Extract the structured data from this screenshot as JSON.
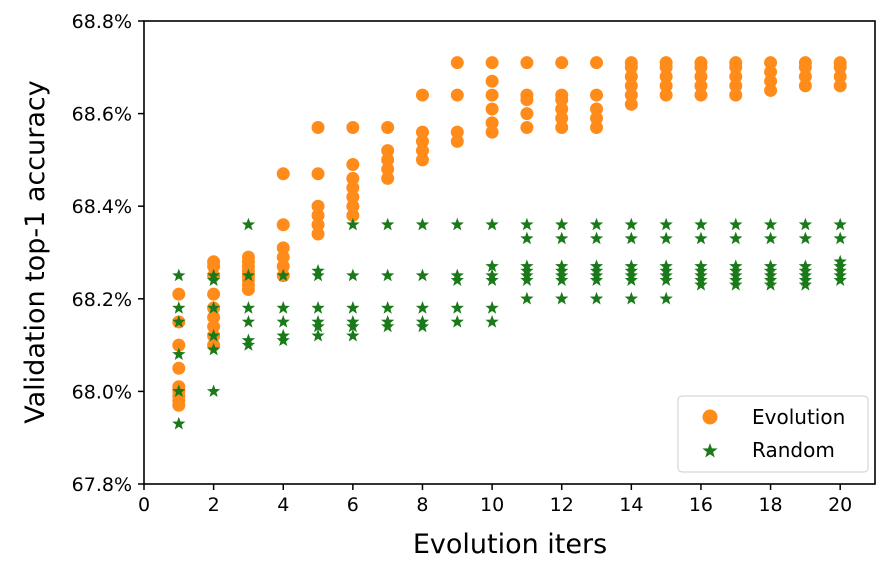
{
  "chart_data": {
    "type": "scatter",
    "xlabel": "Evolution iters",
    "ylabel": "Validation top-1 accuracy",
    "xlim": [
      0,
      21
    ],
    "ylim": [
      67.8,
      68.8
    ],
    "xticks": [
      0,
      2,
      4,
      6,
      8,
      10,
      12,
      14,
      16,
      18,
      20
    ],
    "yticks": [
      67.8,
      68.0,
      68.2,
      68.4,
      68.6,
      68.8
    ],
    "ytick_format": "percent_1dp",
    "legend_position": "lower-right",
    "series": [
      {
        "name": "Evolution",
        "marker": "circle",
        "color": "#ff8c1a",
        "points": [
          [
            1,
            67.97
          ],
          [
            1,
            67.98
          ],
          [
            1,
            67.99
          ],
          [
            1,
            68.0
          ],
          [
            1,
            68.01
          ],
          [
            1,
            68.05
          ],
          [
            1,
            68.1
          ],
          [
            1,
            68.15
          ],
          [
            1,
            68.21
          ],
          [
            2,
            68.1
          ],
          [
            2,
            68.12
          ],
          [
            2,
            68.14
          ],
          [
            2,
            68.16
          ],
          [
            2,
            68.18
          ],
          [
            2,
            68.21
          ],
          [
            2,
            68.25
          ],
          [
            2,
            68.27
          ],
          [
            2,
            68.28
          ],
          [
            3,
            68.22
          ],
          [
            3,
            68.23
          ],
          [
            3,
            68.24
          ],
          [
            3,
            68.25
          ],
          [
            3,
            68.26
          ],
          [
            3,
            68.27
          ],
          [
            3,
            68.28
          ],
          [
            3,
            68.29
          ],
          [
            4,
            68.25
          ],
          [
            4,
            68.27
          ],
          [
            4,
            68.29
          ],
          [
            4,
            68.31
          ],
          [
            4,
            68.36
          ],
          [
            4,
            68.47
          ],
          [
            5,
            68.34
          ],
          [
            5,
            68.36
          ],
          [
            5,
            68.38
          ],
          [
            5,
            68.4
          ],
          [
            5,
            68.47
          ],
          [
            5,
            68.57
          ],
          [
            6,
            68.38
          ],
          [
            6,
            68.4
          ],
          [
            6,
            68.42
          ],
          [
            6,
            68.44
          ],
          [
            6,
            68.46
          ],
          [
            6,
            68.49
          ],
          [
            6,
            68.57
          ],
          [
            7,
            68.46
          ],
          [
            7,
            68.48
          ],
          [
            7,
            68.5
          ],
          [
            7,
            68.52
          ],
          [
            7,
            68.57
          ],
          [
            8,
            68.5
          ],
          [
            8,
            68.52
          ],
          [
            8,
            68.54
          ],
          [
            8,
            68.56
          ],
          [
            8,
            68.64
          ],
          [
            9,
            68.54
          ],
          [
            9,
            68.56
          ],
          [
            9,
            68.64
          ],
          [
            9,
            68.71
          ],
          [
            10,
            68.56
          ],
          [
            10,
            68.58
          ],
          [
            10,
            68.61
          ],
          [
            10,
            68.64
          ],
          [
            10,
            68.67
          ],
          [
            10,
            68.71
          ],
          [
            11,
            68.57
          ],
          [
            11,
            68.6
          ],
          [
            11,
            68.63
          ],
          [
            11,
            68.64
          ],
          [
            11,
            68.71
          ],
          [
            12,
            68.57
          ],
          [
            12,
            68.59
          ],
          [
            12,
            68.61
          ],
          [
            12,
            68.63
          ],
          [
            12,
            68.64
          ],
          [
            12,
            68.71
          ],
          [
            13,
            68.57
          ],
          [
            13,
            68.59
          ],
          [
            13,
            68.61
          ],
          [
            13,
            68.64
          ],
          [
            13,
            68.71
          ],
          [
            14,
            68.62
          ],
          [
            14,
            68.64
          ],
          [
            14,
            68.66
          ],
          [
            14,
            68.68
          ],
          [
            14,
            68.7
          ],
          [
            14,
            68.71
          ],
          [
            15,
            68.64
          ],
          [
            15,
            68.66
          ],
          [
            15,
            68.68
          ],
          [
            15,
            68.7
          ],
          [
            15,
            68.71
          ],
          [
            16,
            68.64
          ],
          [
            16,
            68.66
          ],
          [
            16,
            68.68
          ],
          [
            16,
            68.7
          ],
          [
            16,
            68.71
          ],
          [
            17,
            68.64
          ],
          [
            17,
            68.66
          ],
          [
            17,
            68.68
          ],
          [
            17,
            68.7
          ],
          [
            17,
            68.71
          ],
          [
            18,
            68.65
          ],
          [
            18,
            68.67
          ],
          [
            18,
            68.69
          ],
          [
            18,
            68.71
          ],
          [
            19,
            68.66
          ],
          [
            19,
            68.68
          ],
          [
            19,
            68.7
          ],
          [
            19,
            68.71
          ],
          [
            20,
            68.66
          ],
          [
            20,
            68.68
          ],
          [
            20,
            68.7
          ],
          [
            20,
            68.71
          ]
        ]
      },
      {
        "name": "Random",
        "marker": "star",
        "color": "#1a7a1a",
        "points": [
          [
            1,
            67.93
          ],
          [
            1,
            68.0
          ],
          [
            1,
            68.08
          ],
          [
            1,
            68.15
          ],
          [
            1,
            68.18
          ],
          [
            1,
            68.25
          ],
          [
            2,
            68.0
          ],
          [
            2,
            68.09
          ],
          [
            2,
            68.12
          ],
          [
            2,
            68.18
          ],
          [
            2,
            68.24
          ],
          [
            2,
            68.25
          ],
          [
            3,
            68.1
          ],
          [
            3,
            68.11
          ],
          [
            3,
            68.15
          ],
          [
            3,
            68.18
          ],
          [
            3,
            68.25
          ],
          [
            3,
            68.36
          ],
          [
            4,
            68.11
          ],
          [
            4,
            68.12
          ],
          [
            4,
            68.15
          ],
          [
            4,
            68.18
          ],
          [
            4,
            68.25
          ],
          [
            5,
            68.12
          ],
          [
            5,
            68.14
          ],
          [
            5,
            68.15
          ],
          [
            5,
            68.18
          ],
          [
            5,
            68.25
          ],
          [
            5,
            68.26
          ],
          [
            6,
            68.12
          ],
          [
            6,
            68.14
          ],
          [
            6,
            68.15
          ],
          [
            6,
            68.18
          ],
          [
            6,
            68.25
          ],
          [
            6,
            68.36
          ],
          [
            7,
            68.14
          ],
          [
            7,
            68.15
          ],
          [
            7,
            68.18
          ],
          [
            7,
            68.25
          ],
          [
            7,
            68.36
          ],
          [
            8,
            68.14
          ],
          [
            8,
            68.15
          ],
          [
            8,
            68.18
          ],
          [
            8,
            68.25
          ],
          [
            8,
            68.36
          ],
          [
            9,
            68.15
          ],
          [
            9,
            68.18
          ],
          [
            9,
            68.24
          ],
          [
            9,
            68.25
          ],
          [
            9,
            68.36
          ],
          [
            10,
            68.15
          ],
          [
            10,
            68.18
          ],
          [
            10,
            68.24
          ],
          [
            10,
            68.25
          ],
          [
            10,
            68.27
          ],
          [
            10,
            68.36
          ],
          [
            11,
            68.2
          ],
          [
            11,
            68.24
          ],
          [
            11,
            68.25
          ],
          [
            11,
            68.26
          ],
          [
            11,
            68.27
          ],
          [
            11,
            68.33
          ],
          [
            11,
            68.36
          ],
          [
            12,
            68.2
          ],
          [
            12,
            68.24
          ],
          [
            12,
            68.25
          ],
          [
            12,
            68.26
          ],
          [
            12,
            68.27
          ],
          [
            12,
            68.33
          ],
          [
            12,
            68.36
          ],
          [
            13,
            68.2
          ],
          [
            13,
            68.24
          ],
          [
            13,
            68.25
          ],
          [
            13,
            68.26
          ],
          [
            13,
            68.27
          ],
          [
            13,
            68.33
          ],
          [
            13,
            68.36
          ],
          [
            14,
            68.2
          ],
          [
            14,
            68.24
          ],
          [
            14,
            68.25
          ],
          [
            14,
            68.26
          ],
          [
            14,
            68.27
          ],
          [
            14,
            68.33
          ],
          [
            14,
            68.36
          ],
          [
            15,
            68.2
          ],
          [
            15,
            68.24
          ],
          [
            15,
            68.25
          ],
          [
            15,
            68.26
          ],
          [
            15,
            68.27
          ],
          [
            15,
            68.33
          ],
          [
            15,
            68.36
          ],
          [
            16,
            68.23
          ],
          [
            16,
            68.24
          ],
          [
            16,
            68.25
          ],
          [
            16,
            68.26
          ],
          [
            16,
            68.27
          ],
          [
            16,
            68.33
          ],
          [
            16,
            68.36
          ],
          [
            17,
            68.23
          ],
          [
            17,
            68.24
          ],
          [
            17,
            68.25
          ],
          [
            17,
            68.26
          ],
          [
            17,
            68.27
          ],
          [
            17,
            68.33
          ],
          [
            17,
            68.36
          ],
          [
            18,
            68.23
          ],
          [
            18,
            68.24
          ],
          [
            18,
            68.25
          ],
          [
            18,
            68.26
          ],
          [
            18,
            68.27
          ],
          [
            18,
            68.33
          ],
          [
            18,
            68.36
          ],
          [
            19,
            68.23
          ],
          [
            19,
            68.24
          ],
          [
            19,
            68.25
          ],
          [
            19,
            68.26
          ],
          [
            19,
            68.27
          ],
          [
            19,
            68.33
          ],
          [
            19,
            68.36
          ],
          [
            20,
            68.24
          ],
          [
            20,
            68.25
          ],
          [
            20,
            68.26
          ],
          [
            20,
            68.27
          ],
          [
            20,
            68.28
          ],
          [
            20,
            68.33
          ],
          [
            20,
            68.36
          ]
        ]
      }
    ]
  }
}
